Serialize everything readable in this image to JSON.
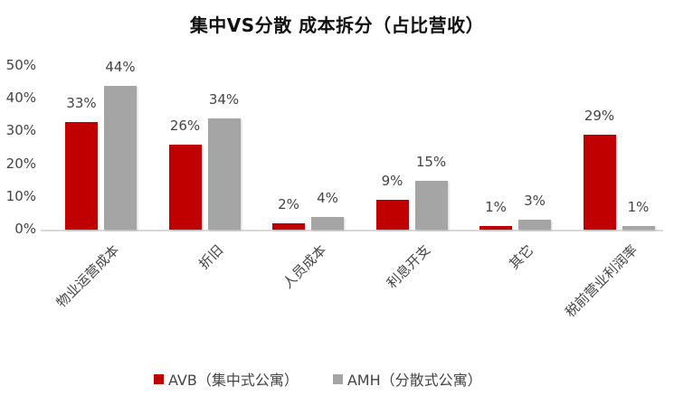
{
  "chart_data": {
    "type": "bar",
    "title": "集中VS分散 成本拆分（占比营收）",
    "xlabel": "",
    "ylabel": "",
    "ylim": [
      0,
      50
    ],
    "yticks": [
      "0%",
      "10%",
      "20%",
      "30%",
      "40%",
      "50%"
    ],
    "grid": false,
    "legend_position": "bottom",
    "categories": [
      "物业运营成本",
      "折旧",
      "人员成本",
      "利息开支",
      "其它",
      "税前营业利润率"
    ],
    "series": [
      {
        "name": "AVB（集中式公寓）",
        "color": "#c00000",
        "values": [
          33,
          26,
          2,
          9,
          1,
          29
        ],
        "labels": [
          "33%",
          "26%",
          "2%",
          "9%",
          "1%",
          "29%"
        ]
      },
      {
        "name": "AMH（分散式公寓）",
        "color": "#a5a5a5",
        "values": [
          44,
          34,
          4,
          15,
          3,
          1
        ],
        "labels": [
          "44%",
          "34%",
          "4%",
          "15%",
          "3%",
          "1%"
        ]
      }
    ]
  }
}
